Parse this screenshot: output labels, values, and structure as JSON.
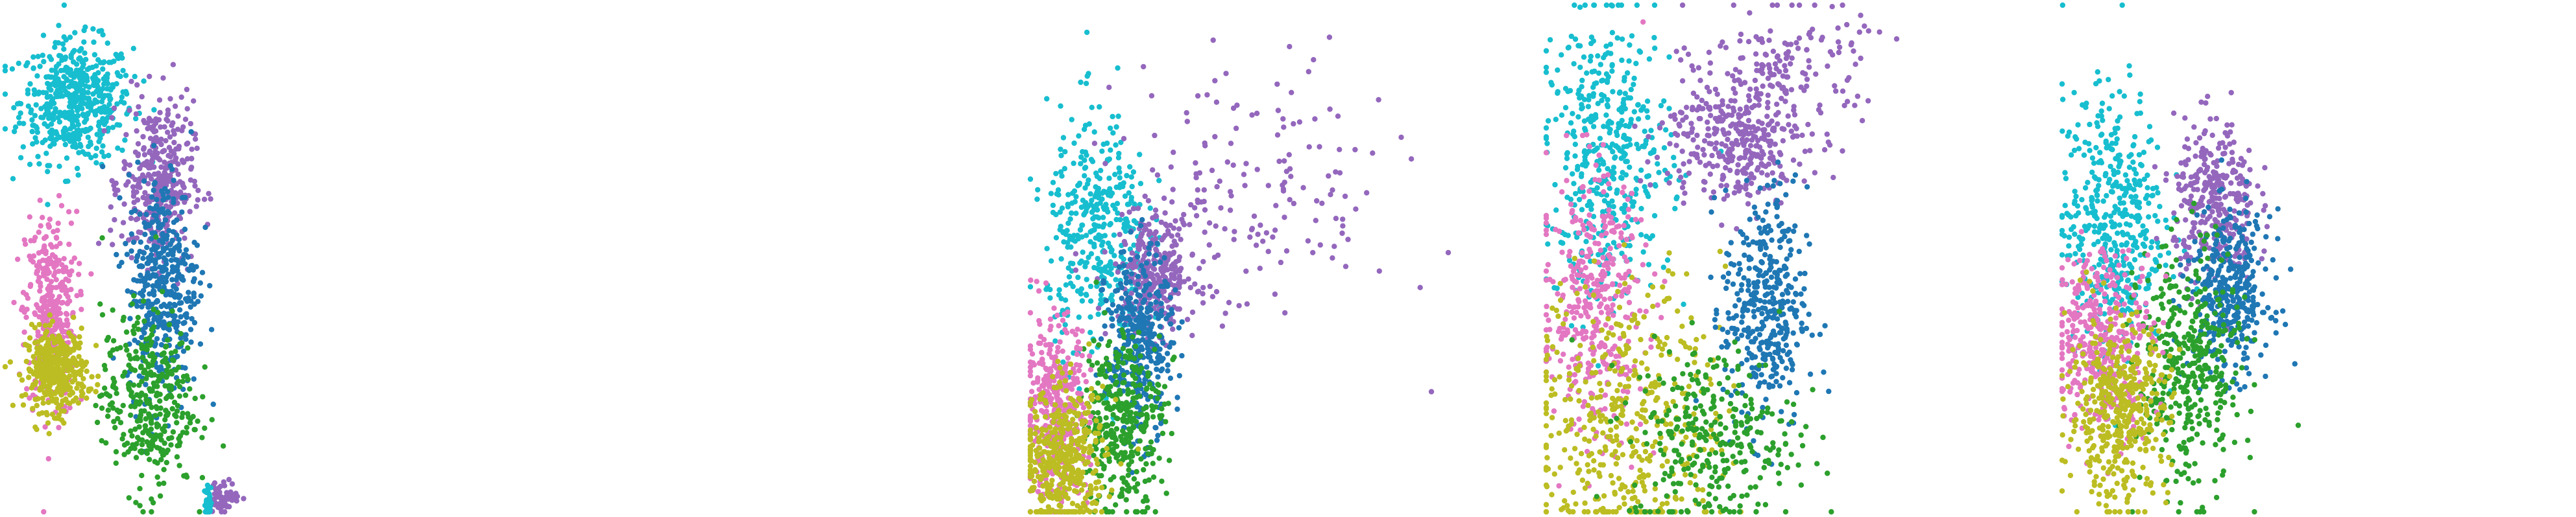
{
  "colors": {
    "cyan": "#17becf",
    "purple": "#9467bd",
    "blue": "#1f77b4",
    "green": "#2ca02c",
    "pink": "#e377c2",
    "olive": "#bcbd22"
  },
  "chart_data": [
    {
      "type": "scatter",
      "xlim": [
        0,
        100
      ],
      "ylim": [
        0,
        100
      ],
      "grid": false,
      "axes": false,
      "legend": "none",
      "clusters": [
        {
          "color_key": "cyan",
          "cx": 14,
          "cy": 81,
          "sx": 5.5,
          "sy": 6,
          "n": 520
        },
        {
          "color_key": "pink",
          "cx": 9,
          "cy": 39,
          "sx": 2.5,
          "sy": 10,
          "n": 360
        },
        {
          "color_key": "olive",
          "cx": 10,
          "cy": 28,
          "sx": 3,
          "sy": 4,
          "n": 380
        },
        {
          "color_key": "purple",
          "cx": 30,
          "cy": 65,
          "sx": 3.5,
          "sy": 8,
          "n": 380
        },
        {
          "color_key": "blue",
          "cx": 31,
          "cy": 45,
          "sx": 3.5,
          "sy": 11,
          "n": 420
        },
        {
          "color_key": "green",
          "cx": 28,
          "cy": 22,
          "sx": 4.5,
          "sy": 9,
          "n": 360
        },
        {
          "color_key": "purple",
          "cx": 43,
          "cy": 3,
          "sx": 1.5,
          "sy": 1.5,
          "n": 60
        },
        {
          "color_key": "cyan",
          "cx": 40,
          "cy": 2,
          "sx": 0.4,
          "sy": 1.5,
          "n": 30
        }
      ]
    },
    {
      "type": "scatter",
      "xlim": [
        0,
        100
      ],
      "ylim": [
        0,
        100
      ],
      "grid": false,
      "axes": false,
      "legend": "none",
      "clusters": [
        {
          "color_key": "cyan",
          "cx": 16,
          "cy": 55,
          "sx": 6,
          "sy": 12,
          "n": 380
        },
        {
          "color_key": "purple",
          "cx": 30,
          "cy": 47,
          "sx": 5,
          "sy": 6,
          "n": 300
        },
        {
          "color_key": "purple",
          "cx": 55,
          "cy": 63,
          "sx": 16,
          "sy": 13,
          "n": 160
        },
        {
          "color_key": "blue",
          "cx": 26,
          "cy": 33,
          "sx": 4,
          "sy": 9,
          "n": 360
        },
        {
          "color_key": "green",
          "cx": 22,
          "cy": 18,
          "sx": 5,
          "sy": 9,
          "n": 360
        },
        {
          "color_key": "pink",
          "cx": 6,
          "cy": 20,
          "sx": 4,
          "sy": 9,
          "n": 380
        },
        {
          "color_key": "olive",
          "cx": 8,
          "cy": 10,
          "sx": 5,
          "sy": 7,
          "n": 420
        }
      ]
    },
    {
      "type": "scatter",
      "xlim": [
        0,
        100
      ],
      "ylim": [
        0,
        100
      ],
      "grid": false,
      "axes": false,
      "legend": "none",
      "clusters": [
        {
          "color_key": "cyan",
          "cx": 12,
          "cy": 70,
          "sx": 6,
          "sy": 14,
          "n": 440
        },
        {
          "color_key": "purple",
          "cx": 36,
          "cy": 73,
          "sx": 7,
          "sy": 6,
          "n": 340
        },
        {
          "color_key": "purple",
          "cx": 45,
          "cy": 88,
          "sx": 8,
          "sy": 6,
          "n": 160
        },
        {
          "color_key": "pink",
          "cx": 9,
          "cy": 41,
          "sx": 5,
          "sy": 13,
          "n": 380
        },
        {
          "color_key": "olive",
          "cx": 16,
          "cy": 18,
          "sx": 9,
          "sy": 14,
          "n": 440
        },
        {
          "color_key": "blue",
          "cx": 42,
          "cy": 40,
          "sx": 4,
          "sy": 12,
          "n": 380
        },
        {
          "color_key": "green",
          "cx": 32,
          "cy": 15,
          "sx": 8,
          "sy": 9,
          "n": 300
        }
      ]
    },
    {
      "type": "scatter",
      "xlim": [
        0,
        100
      ],
      "ylim": [
        0,
        100
      ],
      "grid": false,
      "axes": false,
      "legend": "none",
      "clusters": [
        {
          "color_key": "cyan",
          "cx": 10,
          "cy": 57,
          "sx": 5,
          "sy": 13,
          "n": 460
        },
        {
          "color_key": "purple",
          "cx": 30,
          "cy": 61,
          "sx": 4,
          "sy": 8,
          "n": 320
        },
        {
          "color_key": "blue",
          "cx": 33,
          "cy": 43,
          "sx": 4,
          "sy": 8,
          "n": 360
        },
        {
          "color_key": "green",
          "cx": 25,
          "cy": 28,
          "sx": 5,
          "sy": 12,
          "n": 400
        },
        {
          "color_key": "pink",
          "cx": 8,
          "cy": 34,
          "sx": 5,
          "sy": 9,
          "n": 380
        },
        {
          "color_key": "olive",
          "cx": 11,
          "cy": 20,
          "sx": 5,
          "sy": 9,
          "n": 440
        }
      ]
    }
  ]
}
